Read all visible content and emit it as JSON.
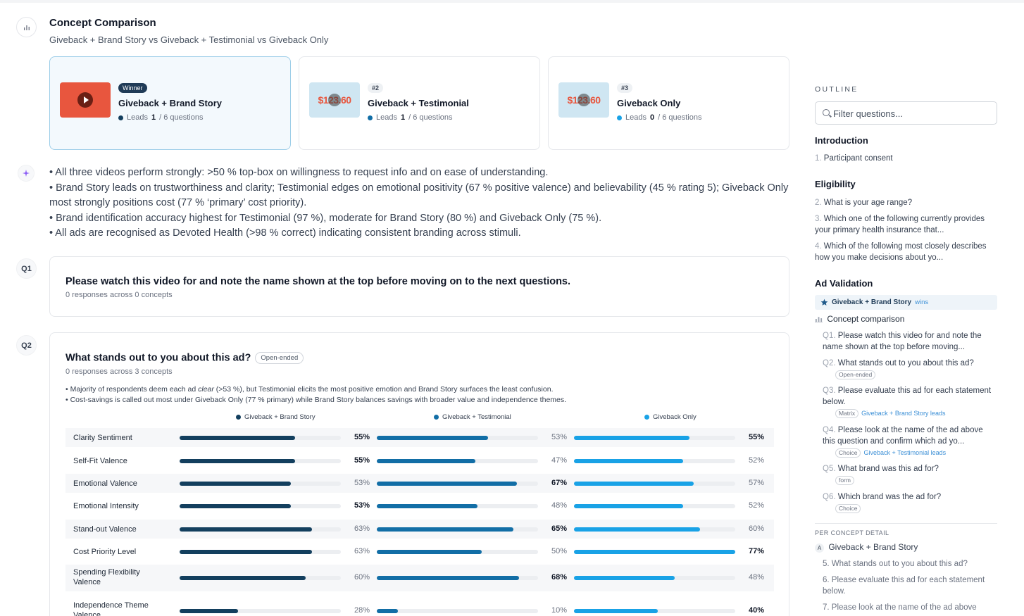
{
  "header": {
    "title": "Concept Comparison",
    "subtitle": "Giveback + Brand Story vs Giveback + Testimonial vs Giveback Only"
  },
  "concepts": [
    {
      "badge": "Winner",
      "name": "Giveback + Brand Story",
      "leads_label": "Leads",
      "leads": "1",
      "of_label": "/ 6 questions",
      "color": "#133f5e",
      "thumb": "play"
    },
    {
      "badge": "#2",
      "name": "Giveback + Testimonial",
      "leads_label": "Leads",
      "leads": "1",
      "of_label": "/ 6 questions",
      "color": "#126ea6",
      "thumb_text": "$123.60"
    },
    {
      "badge": "#3",
      "name": "Giveback Only",
      "leads_label": "Leads",
      "leads": "0",
      "of_label": "/ 6 questions",
      "color": "#19a2e6",
      "thumb_text": "$123.60"
    }
  ],
  "summary": [
    "• All three videos perform strongly: >50 % top-box on willingness to request info and on ease of understanding.",
    "• Brand Story leads on trustworthiness and clarity; Testimonial edges on emotional positivity (67 % positive valence) and believability (45 % rating 5); Giveback Only most strongly positions cost (77 % ‘primary’ cost priority).",
    "• Brand identification accuracy highest for Testimonial (97 %), moderate for Brand Story (80 %) and Giveback Only (75 %).",
    "• All ads are recognised as Devoted Health (>98 % correct) indicating consistent branding across stimuli."
  ],
  "q1": {
    "label": "Q1",
    "title": "Please watch this video for and note the name shown at the top before moving on to the next questions.",
    "meta": "0 responses across 0 concepts"
  },
  "q2": {
    "label": "Q2",
    "title": "What stands out to you about this ad?",
    "type": "Open-ended",
    "meta": "0 responses across 3 concepts",
    "bullet1_pre": "• Majority of respondents deem each ad ",
    "bullet1_em": "clear",
    "bullet1_post": " (>53 %), but Testimonial elicits the most positive emotion and Brand Story surfaces the least confusion.",
    "bullet2": "• Cost-savings is called out most under Giveback Only (77 % primary) while Brand Story balances savings with broader value and independence themes.",
    "legend": [
      "Giveback + Brand Story",
      "Giveback + Testimonial",
      "Giveback Only"
    ],
    "rows": [
      {
        "label": "Clarity Sentiment",
        "values": [
          55,
          53,
          55
        ],
        "text": [
          "55%",
          "53%",
          "55%"
        ]
      },
      {
        "label": "Self-Fit Valence",
        "values": [
          55,
          47,
          52
        ],
        "text": [
          "55%",
          "47%",
          "52%"
        ]
      },
      {
        "label": "Emotional Valence",
        "values": [
          53,
          67,
          57
        ],
        "text": [
          "53%",
          "67%",
          "57%"
        ]
      },
      {
        "label": "Emotional Intensity",
        "values": [
          53,
          48,
          52
        ],
        "text": [
          "53%",
          "48%",
          "52%"
        ]
      },
      {
        "label": "Stand-out Valence",
        "values": [
          63,
          65,
          60
        ],
        "text": [
          "63%",
          "65%",
          "60%"
        ]
      },
      {
        "label": "Cost Priority Level",
        "values": [
          63,
          50,
          77
        ],
        "text": [
          "63%",
          "50%",
          "77%"
        ]
      },
      {
        "label": "Spending Flexibility Valence",
        "values": [
          60,
          68,
          48
        ],
        "text": [
          "60%",
          "68%",
          "48%"
        ]
      },
      {
        "label": "Independence Theme Valence",
        "values": [
          28,
          10,
          40
        ],
        "text": [
          "28%",
          "10%",
          "40%"
        ]
      }
    ]
  },
  "outline": {
    "heading": "OUTLINE",
    "search_placeholder": "Filter questions...",
    "introduction": "Introduction",
    "intro_items": [
      {
        "n": "1.",
        "text": "Participant consent"
      }
    ],
    "eligibility": "Eligibility",
    "elig_items": [
      {
        "n": "2.",
        "text": "What is your age range?"
      },
      {
        "n": "3.",
        "text": "Which one of the following currently provides your primary health insurance that..."
      },
      {
        "n": "4.",
        "text": "Which of the following most closely describes how you make decisions about yo..."
      }
    ],
    "ad_validation": "Ad Validation",
    "winner_name": "Giveback + Brand Story",
    "winner_tag": "wins",
    "concept_comparison": "Concept comparison",
    "questions": [
      {
        "n": "Q1.",
        "text": "Please watch this video for and note the name shown at the top before moving..."
      },
      {
        "n": "Q2.",
        "text": "What stands out to you about this ad?",
        "tag": "Open-ended"
      },
      {
        "n": "Q3.",
        "text": "Please evaluate this ad for each statement below.",
        "tag": "Matrix",
        "note": "Giveback + Brand Story leads"
      },
      {
        "n": "Q4.",
        "text": "Please look at the name of the ad above this question and confirm which ad yo...",
        "tag": "Choice",
        "note": "Giveback + Testimonial leads"
      },
      {
        "n": "Q5.",
        "text": "What brand was this ad for?",
        "tag": "form"
      },
      {
        "n": "Q6.",
        "text": "Which brand was the ad for?",
        "tag": "Choice"
      }
    ],
    "per_concept": "PER CONCEPT DETAIL",
    "pc_concept_badge": "A",
    "pc_concept": "Giveback + Brand Story",
    "pc_items": [
      {
        "n": "5.",
        "text": "What stands out to you about this ad?"
      },
      {
        "n": "6.",
        "text": "Please evaluate this ad for each statement below."
      },
      {
        "n": "7.",
        "text": "Please look at the name of the ad above"
      }
    ]
  }
}
